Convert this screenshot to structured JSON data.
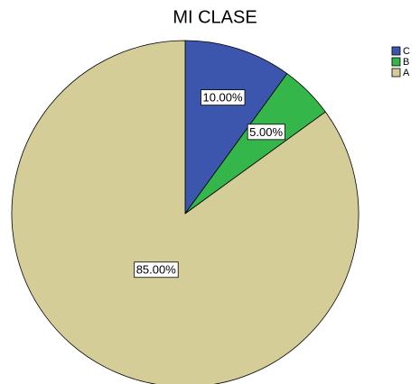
{
  "chart_data": {
    "type": "pie",
    "title": "MI CLASE",
    "categories": [
      "C",
      "B",
      "A"
    ],
    "values": [
      10,
      5,
      85
    ],
    "value_labels": [
      "10.00%",
      "5.00%",
      "85.00%"
    ],
    "colors": [
      "#3d56ad",
      "#34b64a",
      "#d4cd98"
    ],
    "legend": "top-right"
  }
}
